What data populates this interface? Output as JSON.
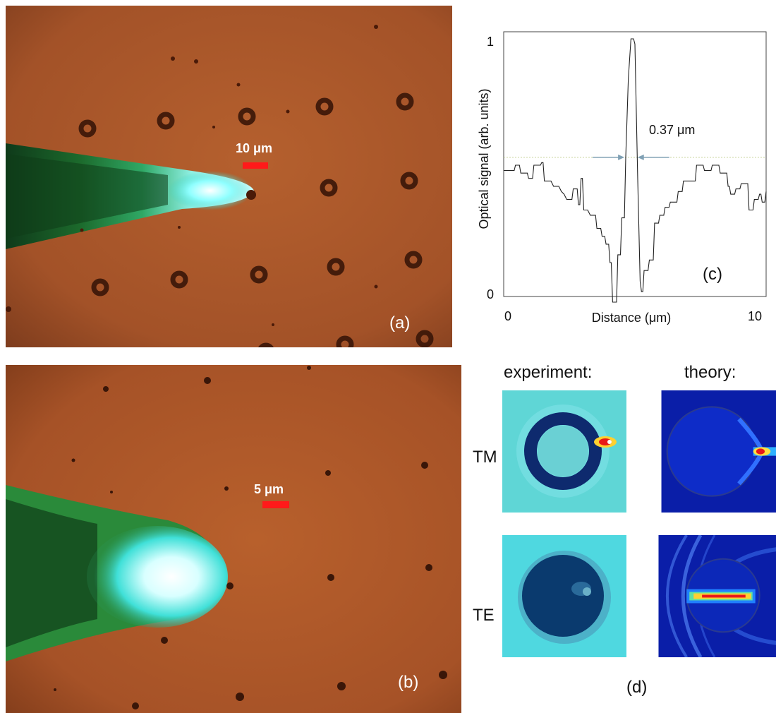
{
  "panel_a": {
    "label": "(a)",
    "scale_bar": "10 μm"
  },
  "panel_b": {
    "label": "(b)",
    "scale_bar": "5 μm"
  },
  "panel_d": {
    "label": "(d)",
    "col_headers": [
      "experiment:",
      "theory:"
    ],
    "row_labels": [
      "TM",
      "TE"
    ]
  },
  "chart_data": {
    "type": "line",
    "label": "(c)",
    "xlabel": "Distance (μm)",
    "ylabel": "Optical signal (arb. units)",
    "xlim": [
      0,
      10
    ],
    "ylim": [
      0,
      1
    ],
    "x_ticks": [
      "0",
      "10"
    ],
    "y_ticks": [
      "0",
      "1"
    ],
    "annotation": "0.37 μm",
    "reference_level": 0.55,
    "annotation_arrows_x": [
      4.6,
      5.1
    ],
    "series": [
      {
        "values": [
          [
            0.0,
            0.5
          ],
          [
            0.4,
            0.5
          ],
          [
            0.45,
            0.52
          ],
          [
            0.6,
            0.52
          ],
          [
            0.65,
            0.49
          ],
          [
            0.9,
            0.49
          ],
          [
            0.95,
            0.47
          ],
          [
            1.1,
            0.47
          ],
          [
            1.15,
            0.52
          ],
          [
            1.4,
            0.52
          ],
          [
            1.45,
            0.53
          ],
          [
            1.5,
            0.53
          ],
          [
            1.55,
            0.46
          ],
          [
            1.8,
            0.46
          ],
          [
            1.9,
            0.44
          ],
          [
            2.1,
            0.44
          ],
          [
            2.2,
            0.42
          ],
          [
            2.3,
            0.41
          ],
          [
            2.4,
            0.39
          ],
          [
            2.6,
            0.39
          ],
          [
            2.65,
            0.43
          ],
          [
            2.8,
            0.43
          ],
          [
            2.85,
            0.37
          ],
          [
            2.9,
            0.37
          ],
          [
            2.95,
            0.47
          ],
          [
            3.0,
            0.47
          ],
          [
            3.05,
            0.35
          ],
          [
            3.2,
            0.35
          ],
          [
            3.3,
            0.33
          ],
          [
            3.5,
            0.33
          ],
          [
            3.55,
            0.28
          ],
          [
            3.7,
            0.28
          ],
          [
            3.75,
            0.25
          ],
          [
            3.85,
            0.25
          ],
          [
            3.9,
            0.22
          ],
          [
            4.0,
            0.22
          ],
          [
            4.05,
            0.15
          ],
          [
            4.1,
            0.15
          ],
          [
            4.15,
            0.0
          ],
          [
            4.3,
            0.0
          ],
          [
            4.35,
            0.18
          ],
          [
            4.45,
            0.18
          ],
          [
            4.5,
            0.32
          ],
          [
            4.6,
            0.32
          ],
          [
            4.65,
            0.55
          ],
          [
            4.75,
            0.85
          ],
          [
            4.85,
            1.0
          ],
          [
            4.95,
            1.0
          ],
          [
            5.0,
            0.98
          ],
          [
            5.1,
            0.5
          ],
          [
            5.2,
            0.08
          ],
          [
            5.25,
            0.04
          ],
          [
            5.3,
            0.04
          ],
          [
            5.35,
            0.12
          ],
          [
            5.5,
            0.12
          ],
          [
            5.55,
            0.16
          ],
          [
            5.7,
            0.16
          ],
          [
            5.75,
            0.3
          ],
          [
            5.9,
            0.3
          ],
          [
            5.95,
            0.33
          ],
          [
            6.1,
            0.33
          ],
          [
            6.15,
            0.36
          ],
          [
            6.3,
            0.36
          ],
          [
            6.35,
            0.38
          ],
          [
            6.6,
            0.38
          ],
          [
            6.65,
            0.42
          ],
          [
            6.8,
            0.42
          ],
          [
            6.85,
            0.46
          ],
          [
            7.3,
            0.46
          ],
          [
            7.35,
            0.52
          ],
          [
            7.6,
            0.52
          ],
          [
            7.65,
            0.5
          ],
          [
            7.9,
            0.5
          ],
          [
            7.95,
            0.52
          ],
          [
            8.2,
            0.52
          ],
          [
            8.25,
            0.49
          ],
          [
            8.5,
            0.49
          ],
          [
            8.55,
            0.44
          ],
          [
            8.6,
            0.44
          ],
          [
            8.65,
            0.41
          ],
          [
            8.8,
            0.41
          ],
          [
            8.85,
            0.43
          ],
          [
            9.0,
            0.43
          ],
          [
            9.05,
            0.45
          ],
          [
            9.3,
            0.45
          ],
          [
            9.35,
            0.35
          ],
          [
            9.5,
            0.35
          ],
          [
            9.55,
            0.39
          ],
          [
            9.7,
            0.39
          ],
          [
            9.75,
            0.41
          ],
          [
            9.8,
            0.41
          ],
          [
            9.85,
            0.38
          ],
          [
            9.95,
            0.38
          ],
          [
            10.0,
            0.42
          ]
        ]
      }
    ]
  }
}
